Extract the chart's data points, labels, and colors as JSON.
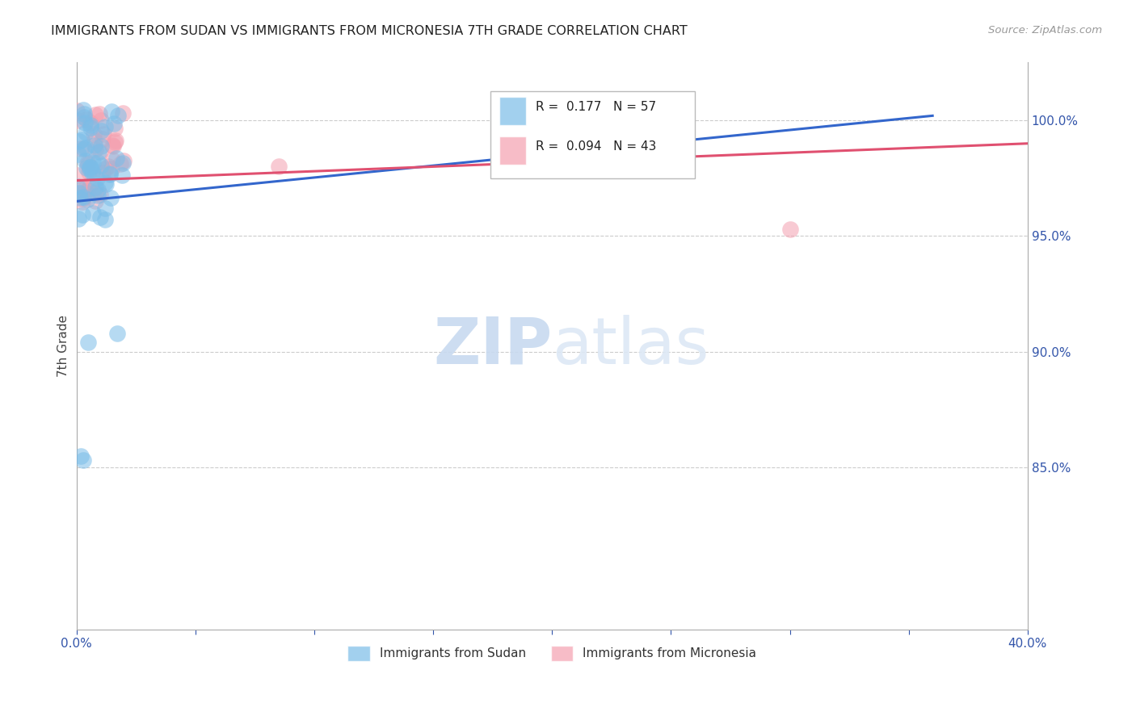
{
  "title": "IMMIGRANTS FROM SUDAN VS IMMIGRANTS FROM MICRONESIA 7TH GRADE CORRELATION CHART",
  "source": "Source: ZipAtlas.com",
  "ylabel": "7th Grade",
  "ylabel_right_ticks": [
    "100.0%",
    "95.0%",
    "90.0%",
    "85.0%"
  ],
  "ylabel_right_vals": [
    1.0,
    0.95,
    0.9,
    0.85
  ],
  "xlim": [
    0.0,
    0.4
  ],
  "ylim": [
    0.78,
    1.025
  ],
  "sudan_R": 0.177,
  "sudan_N": 57,
  "micronesia_R": 0.094,
  "micronesia_N": 43,
  "sudan_color": "#7bbde8",
  "micronesia_color": "#f4a0b0",
  "sudan_line_color": "#3366cc",
  "micronesia_line_color": "#e05070",
  "sudan_line_x0": 0.0,
  "sudan_line_y0": 0.965,
  "sudan_line_x1": 0.36,
  "sudan_line_y1": 1.002,
  "micronesia_line_x0": 0.0,
  "micronesia_line_y0": 0.974,
  "micronesia_line_x1": 0.4,
  "micronesia_line_y1": 0.99,
  "watermark_text": "ZIPatlas",
  "legend_sudan_text": "R =  0.177   N = 57",
  "legend_micronesia_text": "R =  0.094   N = 43"
}
